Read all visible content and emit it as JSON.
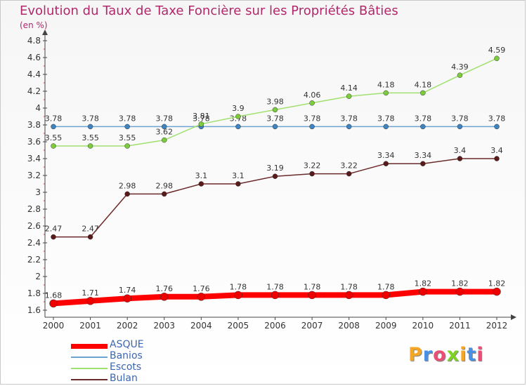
{
  "page": {
    "title": "Evolution du Taux de Taxe Foncière sur les Propriétés Bâties",
    "unit": "(en %)"
  },
  "legend": [
    {
      "label": "ASQUE",
      "color": "#ff0000"
    },
    {
      "label": "Banios",
      "color": "#6ba3d0"
    },
    {
      "label": "Escots",
      "color": "#a0e070"
    },
    {
      "label": "Bulan",
      "color": "#6b2a2a"
    }
  ],
  "logo": {
    "text": "Proxiti"
  },
  "chart_data": {
    "type": "line",
    "x": [
      "2000",
      "2001",
      "2002",
      "2003",
      "2004",
      "2005",
      "2006",
      "2007",
      "2008",
      "2009",
      "2010",
      "2011",
      "2012"
    ],
    "yticks": [
      "1.6",
      "1.8",
      "2",
      "2.2",
      "2.4",
      "2.6",
      "2.8",
      "3",
      "3.2",
      "3.4",
      "3.6",
      "3.8",
      "4",
      "4.2",
      "4.4",
      "4.6",
      "4.8"
    ],
    "ylim": [
      1.6,
      4.8
    ],
    "grid": false,
    "legend_position": "bottom-left",
    "series": [
      {
        "name": "ASQUE",
        "color": "#ff0000",
        "marker": "#ee0000",
        "values": [
          1.68,
          1.71,
          1.74,
          1.76,
          1.76,
          1.78,
          1.78,
          1.78,
          1.78,
          1.78,
          1.82,
          1.82,
          1.82
        ],
        "labels": [
          "1.68",
          "1.71",
          "1.74",
          "1.76",
          "1.76",
          "1.78",
          "1.78",
          "1.78",
          "1.78",
          "1.78",
          "1.82",
          "1.82",
          "1.82"
        ]
      },
      {
        "name": "Banios",
        "color": "#6ba3d0",
        "marker": "#3f83c0",
        "values": [
          3.78,
          3.78,
          3.78,
          3.78,
          3.78,
          3.78,
          3.78,
          3.78,
          3.78,
          3.78,
          3.78,
          3.78,
          3.78
        ],
        "labels": [
          "3.78",
          "3.78",
          "3.78",
          "3.78",
          "3.78",
          "3.78",
          "3.78",
          "3.78",
          "3.78",
          "3.78",
          "3.78",
          "3.78",
          "3.78"
        ]
      },
      {
        "name": "Escots",
        "color": "#a0e070",
        "marker": "#7ccc3c",
        "values": [
          3.55,
          3.55,
          3.55,
          3.62,
          3.81,
          3.9,
          3.98,
          4.06,
          4.14,
          4.18,
          4.18,
          4.39,
          4.59
        ],
        "labels": [
          "3.55",
          "3.55",
          "3.55",
          "3.62",
          "3.81",
          "3.9",
          "3.98",
          "4.06",
          "4.14",
          "4.18",
          "4.18",
          "4.39",
          "4.59"
        ]
      },
      {
        "name": "Bulan",
        "color": "#6b2a2a",
        "marker": "#5a1a1a",
        "values": [
          2.47,
          2.47,
          2.98,
          2.98,
          3.1,
          3.1,
          3.19,
          3.22,
          3.22,
          3.34,
          3.34,
          3.4,
          3.4
        ],
        "labels": [
          "2.47",
          "2.47",
          "2.98",
          "2.98",
          "3.1",
          "3.1",
          "3.19",
          "3.22",
          "3.22",
          "3.34",
          "3.34",
          "3.4",
          "3.4"
        ]
      }
    ]
  }
}
